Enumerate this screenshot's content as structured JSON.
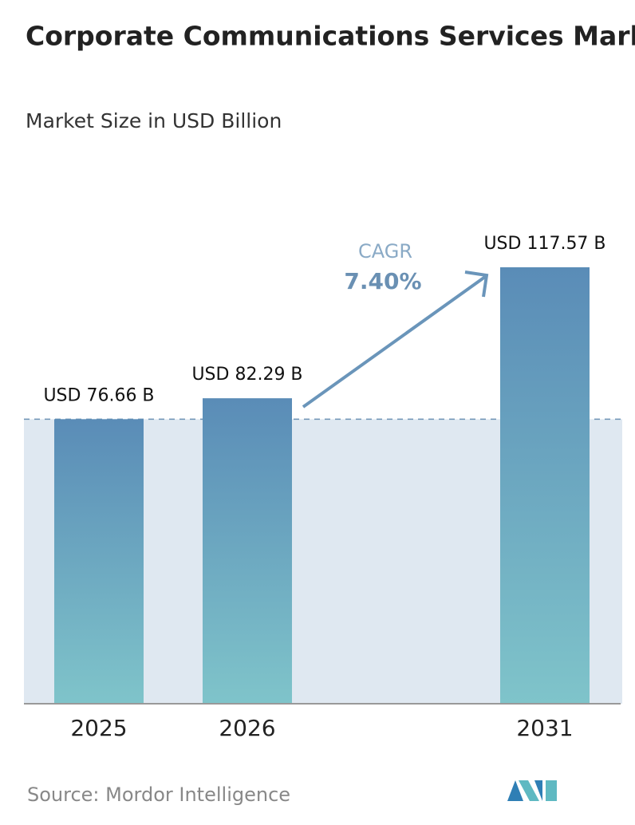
{
  "chart_data": {
    "type": "bar",
    "title": "Corporate Communications Services Market",
    "subtitle": "Market Size in USD Billion",
    "categories": [
      "2025",
      "2026",
      "2031"
    ],
    "values": [
      76.66,
      82.29,
      117.57
    ],
    "value_labels": [
      "USD 76.66 B",
      "USD 82.29 B",
      "USD 117.57 B"
    ],
    "annotation": {
      "label": "CAGR",
      "value": "7.40%"
    },
    "source": "Source: Mordor Intelligence"
  }
}
